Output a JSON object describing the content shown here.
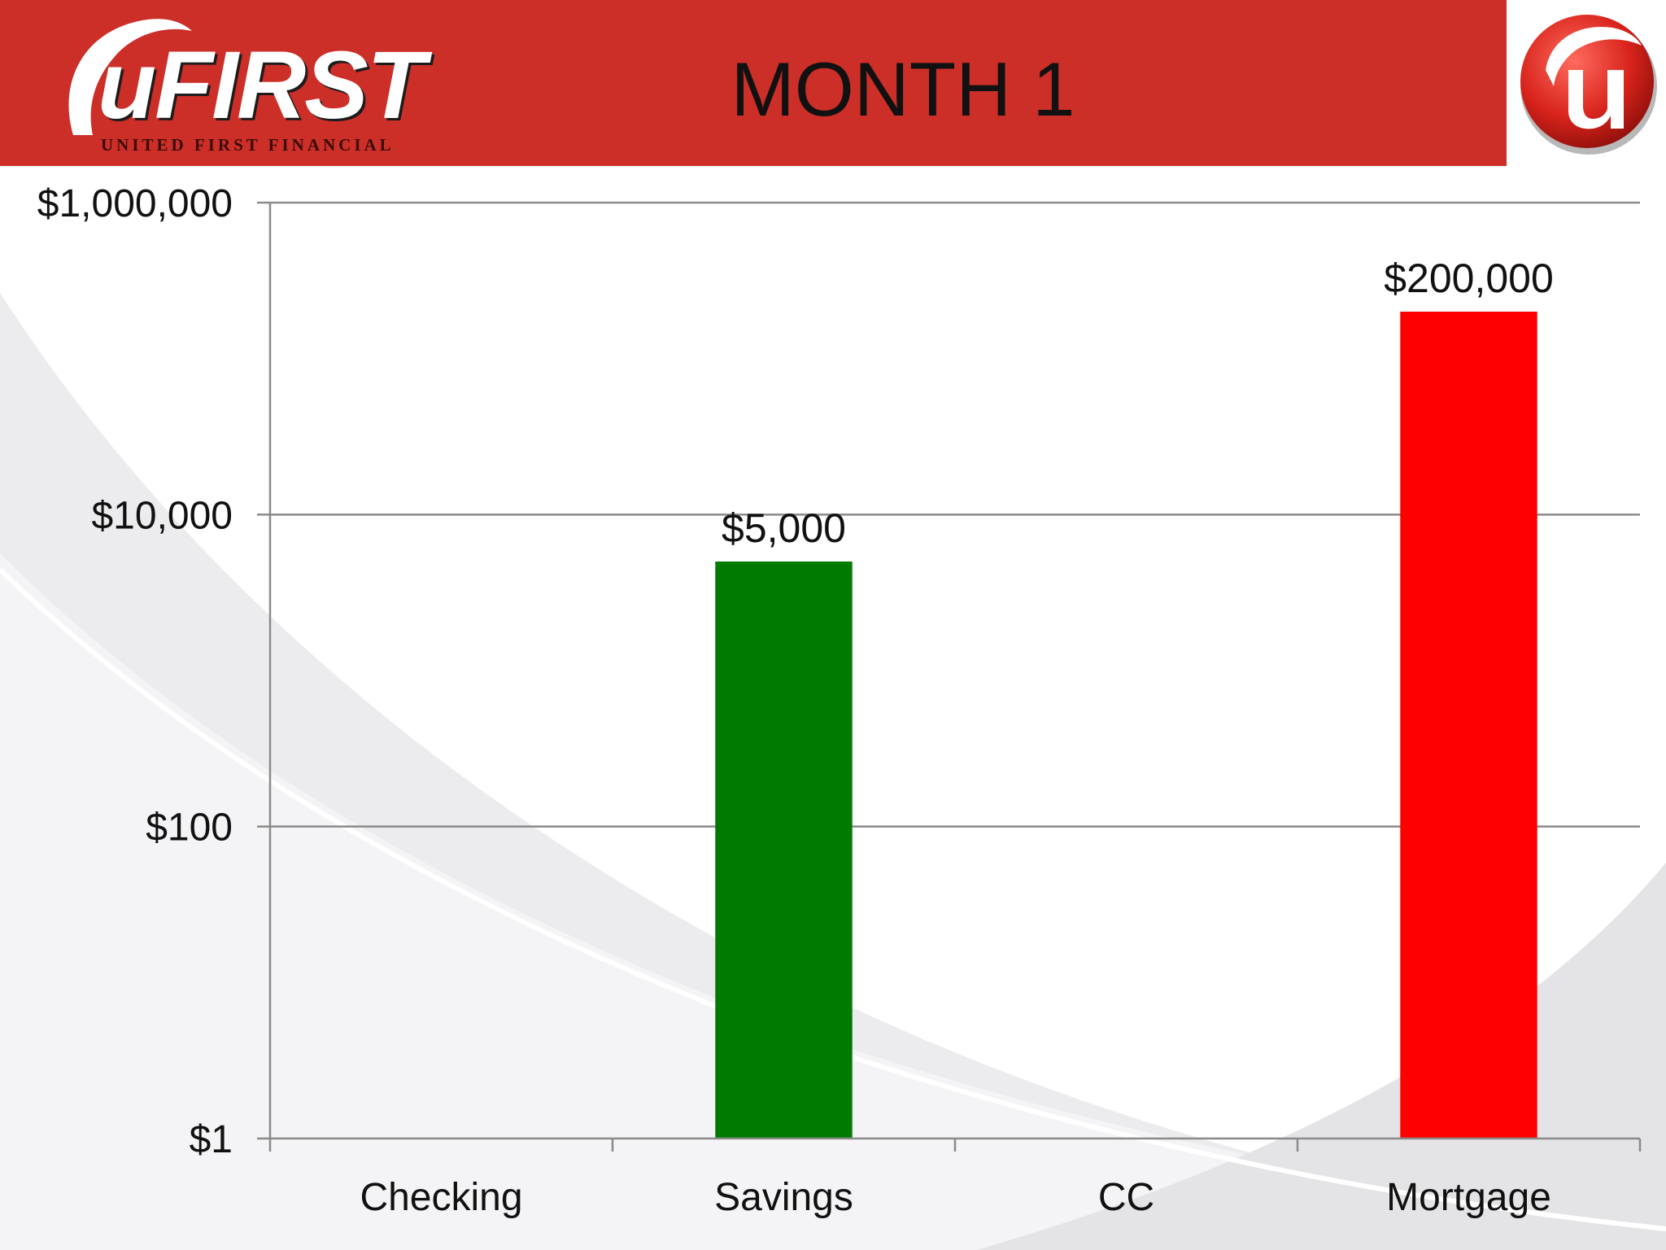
{
  "header": {
    "logo_text": "uFIRST",
    "logo_tagline": "UNITED FIRST FINANCIAL",
    "title": "MONTH 1"
  },
  "colors": {
    "header_band": "#cc2e28",
    "savings_bar": "#007a00",
    "mortgage_bar": "#ff0000",
    "gridline": "#8a8a8a"
  },
  "icons": {
    "logo": "ufirst-logo-icon",
    "badge": "ufirst-u-badge-icon"
  },
  "chart_data": {
    "type": "bar",
    "title": "MONTH 1",
    "xlabel": "",
    "ylabel": "",
    "y_scale": "log",
    "ylim": [
      1,
      1000000
    ],
    "grid": true,
    "legend": "none",
    "categories": [
      "Checking",
      "Savings",
      "CC",
      "Mortgage"
    ],
    "y_ticks": [
      1,
      100,
      10000,
      1000000
    ],
    "y_tick_labels": [
      "$1",
      "$100",
      "$10,000",
      "$1,000,000"
    ],
    "series": [
      {
        "values": [
          null,
          5000,
          null,
          200000
        ],
        "data_labels": [
          "",
          "$5,000",
          "",
          "$200,000"
        ],
        "colors": [
          "#007a00",
          "#007a00",
          "#ff0000",
          "#ff0000"
        ]
      }
    ]
  }
}
